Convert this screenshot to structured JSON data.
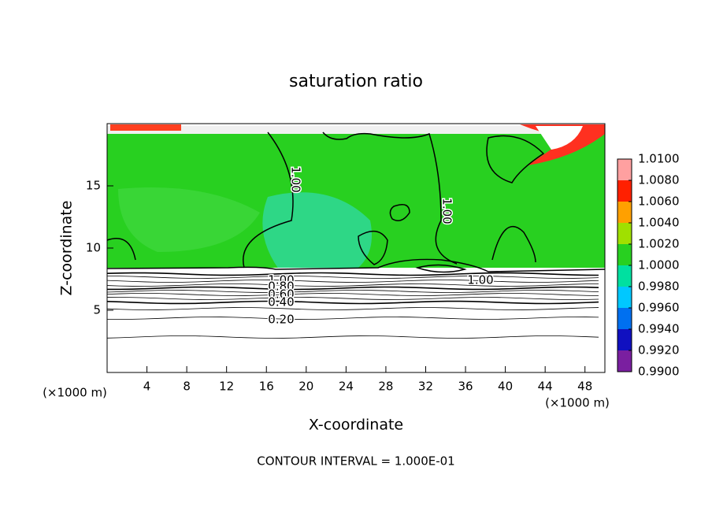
{
  "chart_data": {
    "type": "contour",
    "title": "saturation ratio",
    "x_label": "X-coordinate",
    "y_label": "Z-coordinate",
    "x_unit": "(×1000 m)",
    "y_unit": "(×1000 m)",
    "xlim": [
      0,
      50
    ],
    "ylim": [
      0,
      20
    ],
    "xticks": [
      4,
      8,
      12,
      16,
      20,
      24,
      28,
      32,
      36,
      40,
      44,
      48
    ],
    "yticks": [
      5,
      10,
      15
    ],
    "colorbar": {
      "ticks": [
        {
          "value": 0.99,
          "label": "0.9900"
        },
        {
          "value": 0.992,
          "label": "0.9920"
        },
        {
          "value": 0.994,
          "label": "0.9940"
        },
        {
          "value": 0.996,
          "label": "0.9960"
        },
        {
          "value": 0.998,
          "label": "0.9980"
        },
        {
          "value": 1.0,
          "label": "1.0000"
        },
        {
          "value": 1.002,
          "label": "1.0020"
        },
        {
          "value": 1.004,
          "label": "1.0040"
        },
        {
          "value": 1.006,
          "label": "1.0060"
        },
        {
          "value": 1.008,
          "label": "1.0080"
        },
        {
          "value": 1.01,
          "label": "1.0100"
        }
      ],
      "colors": [
        "#7a1fa0",
        "#1010c0",
        "#0070f0",
        "#00c8ff",
        "#00e0a0",
        "#28d020",
        "#a0e000",
        "#ffa000",
        "#ff2000",
        "#ffa0a0"
      ]
    },
    "contour_labels": [
      "1.00",
      "1.00",
      "1.00",
      "1.00",
      "0.80",
      "0.60",
      "0.40",
      "0.20"
    ],
    "footer": "CONTOUR INTERVAL = 1.000E-01"
  }
}
